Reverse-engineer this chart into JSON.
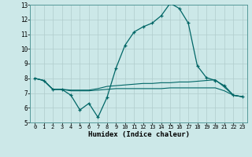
{
  "xlabel": "Humidex (Indice chaleur)",
  "bg_color": "#cce8e8",
  "grid_color": "#b0cccc",
  "line_color": "#006666",
  "xlim": [
    -0.5,
    23.5
  ],
  "ylim": [
    5,
    13
  ],
  "xticks": [
    0,
    1,
    2,
    3,
    4,
    5,
    6,
    7,
    8,
    9,
    10,
    11,
    12,
    13,
    14,
    15,
    16,
    17,
    18,
    19,
    20,
    21,
    22,
    23
  ],
  "yticks": [
    5,
    6,
    7,
    8,
    9,
    10,
    11,
    12,
    13
  ],
  "curve1_x": [
    0,
    1,
    2,
    3,
    4,
    5,
    6,
    7,
    8,
    9,
    10,
    11,
    12,
    13,
    14,
    15,
    16,
    17,
    18,
    19,
    20,
    21,
    22,
    23
  ],
  "curve1_y": [
    8.0,
    7.85,
    7.25,
    7.25,
    6.85,
    5.85,
    6.3,
    5.35,
    6.7,
    8.7,
    10.25,
    11.15,
    11.5,
    11.75,
    12.25,
    13.1,
    12.75,
    11.75,
    8.85,
    8.05,
    7.85,
    7.5,
    6.85,
    6.75
  ],
  "curve2_x": [
    0,
    1,
    2,
    3,
    4,
    5,
    6,
    7,
    8,
    9,
    10,
    11,
    12,
    13,
    14,
    15,
    16,
    17,
    18,
    19,
    20,
    21,
    22,
    23
  ],
  "curve2_y": [
    8.0,
    7.85,
    7.25,
    7.25,
    7.2,
    7.2,
    7.2,
    7.3,
    7.45,
    7.5,
    7.55,
    7.6,
    7.65,
    7.65,
    7.7,
    7.7,
    7.75,
    7.75,
    7.8,
    7.85,
    7.9,
    7.4,
    6.85,
    6.75
  ],
  "curve3_x": [
    0,
    1,
    2,
    3,
    4,
    5,
    6,
    7,
    8,
    9,
    10,
    11,
    12,
    13,
    14,
    15,
    16,
    17,
    18,
    19,
    20,
    21,
    22,
    23
  ],
  "curve3_y": [
    8.0,
    7.85,
    7.25,
    7.25,
    7.15,
    7.15,
    7.15,
    7.2,
    7.25,
    7.3,
    7.3,
    7.3,
    7.3,
    7.3,
    7.3,
    7.35,
    7.35,
    7.35,
    7.35,
    7.35,
    7.35,
    7.15,
    6.85,
    6.75
  ]
}
